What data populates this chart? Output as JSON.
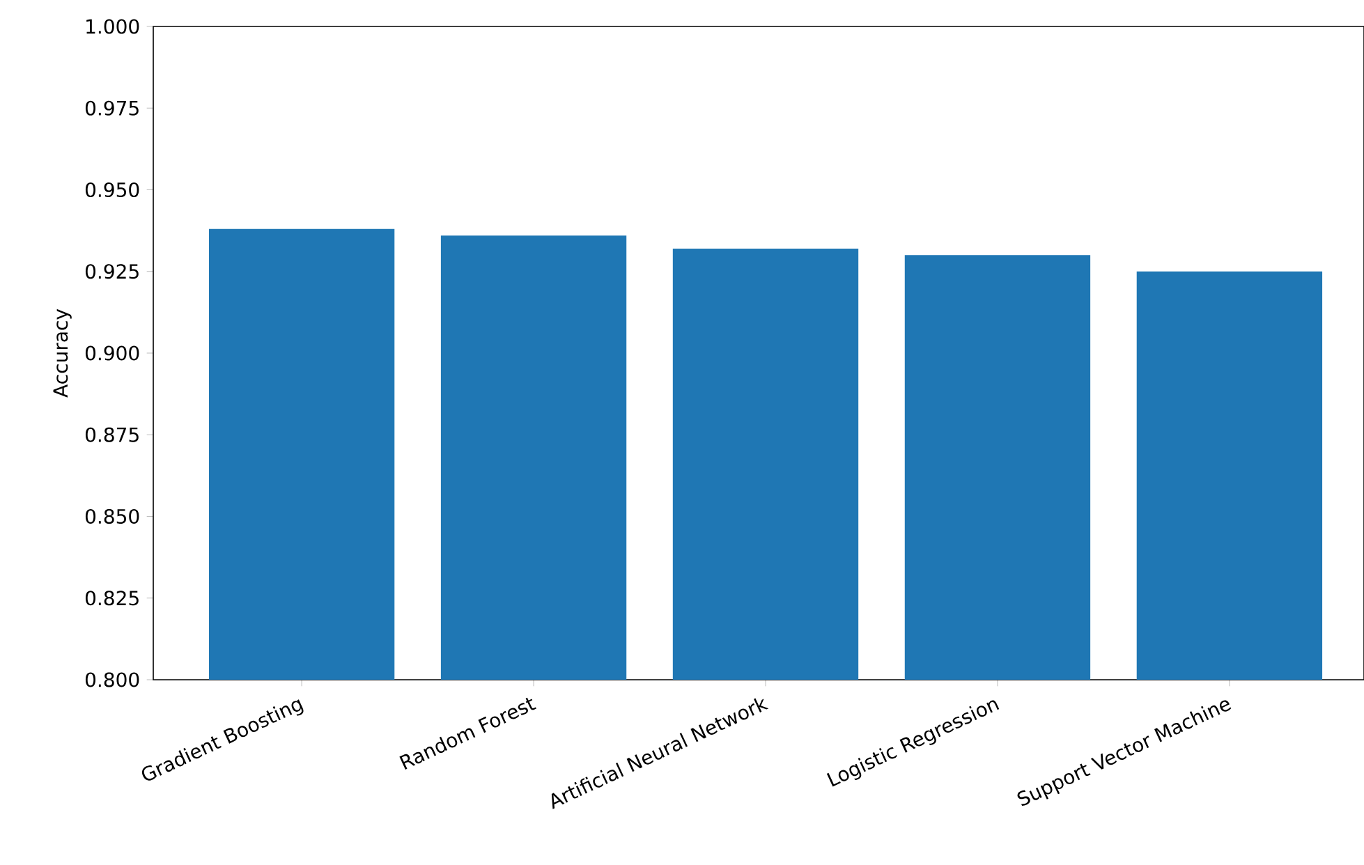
{
  "chart_data": {
    "type": "bar",
    "ylabel": "Accuracy",
    "categories": [
      "Gradient Boosting",
      "Random Forest",
      "Artificial Neural Network",
      "Logistic Regression",
      "Support Vector Machine"
    ],
    "values": [
      0.938,
      0.936,
      0.932,
      0.93,
      0.925
    ],
    "color": "#1f77b4",
    "ylim": [
      0.8,
      1.0
    ],
    "yticks": [
      {
        "value": 0.8,
        "label": "0.800"
      },
      {
        "value": 0.825,
        "label": "0.825"
      },
      {
        "value": 0.85,
        "label": "0.850"
      },
      {
        "value": 0.875,
        "label": "0.875"
      },
      {
        "value": 0.9,
        "label": "0.900"
      },
      {
        "value": 0.925,
        "label": "0.925"
      },
      {
        "value": 0.95,
        "label": "0.950"
      },
      {
        "value": 0.975,
        "label": "0.975"
      },
      {
        "value": 1.0,
        "label": "1.000"
      }
    ]
  }
}
